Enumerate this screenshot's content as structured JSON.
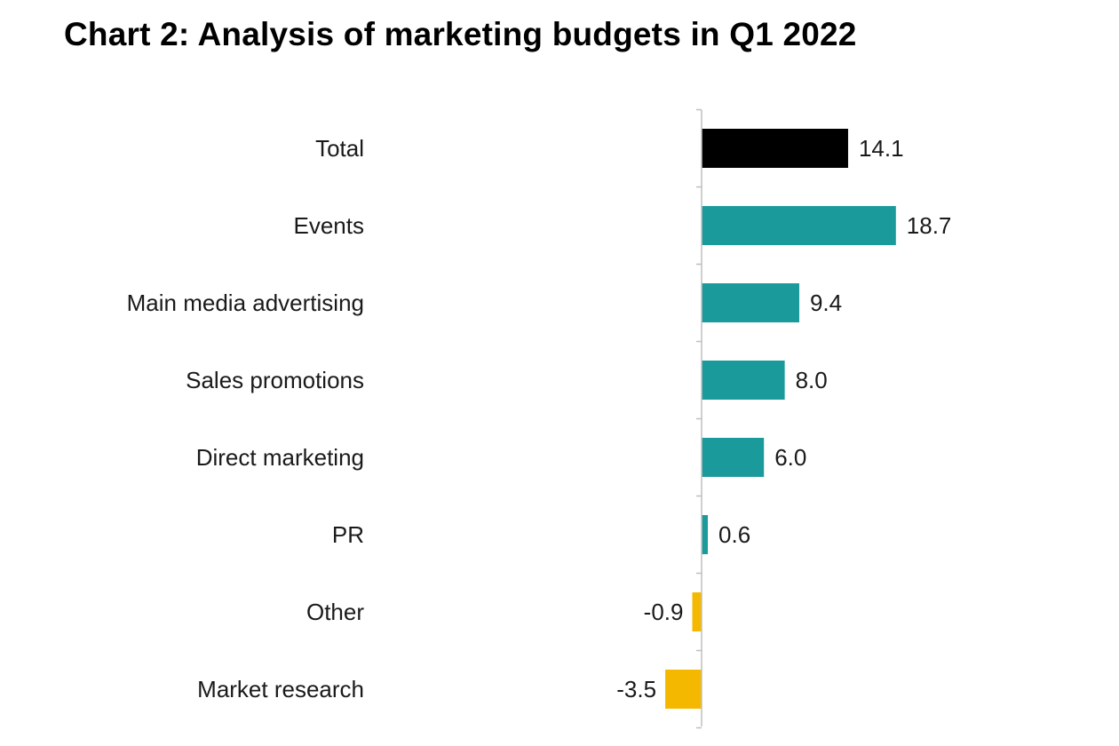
{
  "chart_data": {
    "type": "bar",
    "orientation": "horizontal",
    "title": "Chart 2: Analysis of marketing budgets in Q1 2022",
    "xlabel": "",
    "ylabel": "",
    "categories": [
      "Total",
      "Events",
      "Main media advertising",
      "Sales promotions",
      "Direct marketing",
      "PR",
      "Other",
      "Market research"
    ],
    "values": [
      14.1,
      18.7,
      9.4,
      8.0,
      6.0,
      0.6,
      -0.9,
      -3.5
    ],
    "value_labels": [
      "14.1",
      "18.7",
      "9.4",
      "8.0",
      "6.0",
      "0.6",
      "-0.9",
      "-3.5"
    ],
    "xlim": [
      -5,
      25
    ],
    "grid": false,
    "legend": "none",
    "colors": {
      "total": "#000000",
      "positive": "#1a9a9a",
      "negative": "#f5b800",
      "axis": "#bfbfbf"
    }
  }
}
